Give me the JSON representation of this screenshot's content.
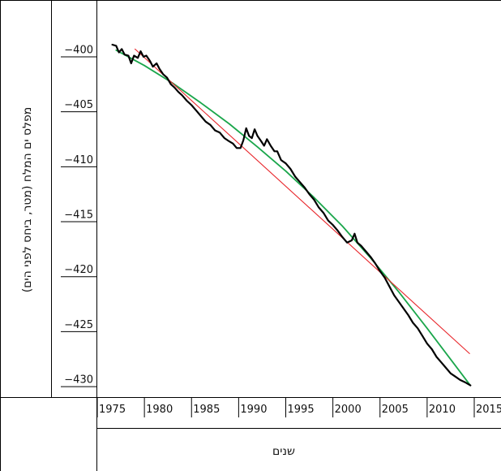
{
  "chart_data": {
    "type": "line",
    "xlabel": "שנים",
    "ylabel": "מפלס ים המלח (מטר, ביחס לפני הים)",
    "xlim": [
      1975,
      2015
    ],
    "ylim": [
      -430.4,
      -397.6
    ],
    "x_ticks": [
      "1975",
      "1980",
      "1985",
      "1990",
      "1995",
      "2000",
      "2005",
      "2010",
      "2015"
    ],
    "y_ticks": [
      "-400",
      "-405",
      "-410",
      "-415",
      "-420",
      "-425",
      "-430"
    ],
    "grid": false,
    "colors": {
      "observed": "#000000",
      "trend_linear": "#e8262b",
      "trend_quadratic": "#1aa64b"
    },
    "series": [
      {
        "key": "observed",
        "x": [
          1976.6,
          1977.0,
          1977.3,
          1977.6,
          1977.9,
          1978.3,
          1978.6,
          1978.9,
          1979.3,
          1979.6,
          1979.9,
          1980.2,
          1980.6,
          1980.9,
          1981.3,
          1981.6,
          1982.0,
          1982.4,
          1982.8,
          1983.2,
          1983.6,
          1984.0,
          1984.5,
          1985.0,
          1985.5,
          1986.0,
          1986.5,
          1987.0,
          1987.5,
          1988.0,
          1988.5,
          1989.0,
          1989.4,
          1989.8,
          1990.2,
          1990.5,
          1990.8,
          1991.1,
          1991.4,
          1991.7,
          1992.0,
          1992.4,
          1992.7,
          1993.0,
          1993.4,
          1993.8,
          1994.1,
          1994.5,
          1995.0,
          1995.5,
          1996.0,
          1996.5,
          1997.0,
          1997.5,
          1998.0,
          1998.5,
          1999.0,
          1999.5,
          2000.0,
          2000.5,
          2001.0,
          2001.5,
          2002.0,
          2002.3,
          2002.6,
          2003.0,
          2003.5,
          2004.0,
          2004.5,
          2005.0,
          2005.5,
          2006.0,
          2006.5,
          2007.0,
          2007.5,
          2008.0,
          2008.5,
          2009.0,
          2009.5,
          2010.0,
          2010.5,
          2011.0,
          2011.5,
          2012.0,
          2012.5,
          2013.0,
          2013.5,
          2014.0,
          2014.6
        ],
        "y": [
          -399.3,
          -399.4,
          -400.0,
          -399.7,
          -400.2,
          -400.3,
          -401.0,
          -400.3,
          -400.5,
          -399.9,
          -400.4,
          -400.3,
          -400.8,
          -401.3,
          -401.0,
          -401.5,
          -402.0,
          -402.3,
          -402.9,
          -403.2,
          -403.6,
          -403.9,
          -404.4,
          -404.8,
          -405.3,
          -405.8,
          -406.3,
          -406.6,
          -407.1,
          -407.3,
          -407.8,
          -408.1,
          -408.3,
          -408.7,
          -408.7,
          -408.0,
          -406.9,
          -407.6,
          -407.8,
          -407.0,
          -407.6,
          -408.1,
          -408.5,
          -407.9,
          -408.5,
          -409.0,
          -409.0,
          -409.8,
          -410.1,
          -410.6,
          -411.3,
          -411.8,
          -412.3,
          -412.9,
          -413.4,
          -414.1,
          -414.6,
          -415.3,
          -415.7,
          -416.2,
          -416.8,
          -417.3,
          -417.1,
          -416.5,
          -417.3,
          -417.6,
          -418.1,
          -418.6,
          -419.2,
          -419.9,
          -420.5,
          -421.3,
          -422.1,
          -422.7,
          -423.3,
          -423.9,
          -424.6,
          -425.1,
          -425.8,
          -426.5,
          -427.0,
          -427.7,
          -428.2,
          -428.7,
          -429.2,
          -429.5,
          -429.8,
          -430.0,
          -430.3
        ]
      },
      {
        "key": "trend_linear",
        "x": [
          1979.0,
          2014.5
        ],
        "y": [
          -399.7,
          -427.4
        ]
      },
      {
        "key": "trend_quadratic",
        "x": [
          1977.0,
          1980.0,
          1983.0,
          1986.0,
          1989.0,
          1992.0,
          1995.0,
          1998.0,
          2001.0,
          2004.0,
          2007.0,
          2010.0,
          2013.0,
          2014.5
        ],
        "y": [
          -399.8,
          -401.2,
          -402.8,
          -404.6,
          -406.5,
          -408.6,
          -410.8,
          -413.2,
          -415.8,
          -418.7,
          -421.8,
          -425.1,
          -428.5,
          -430.2
        ]
      }
    ]
  }
}
